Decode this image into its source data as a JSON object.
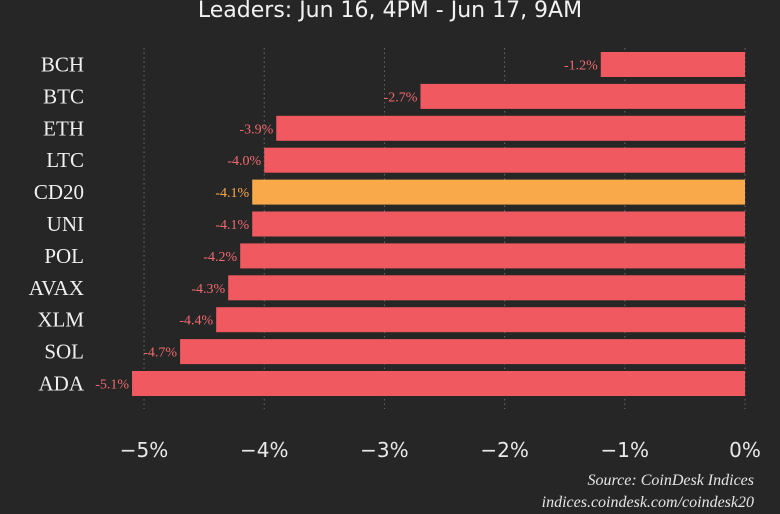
{
  "header": {
    "subtitle": "Leaders: Jun 16, 4PM - Jun 17, 9AM"
  },
  "chart_data": {
    "type": "bar",
    "orientation": "horizontal",
    "categories": [
      "BCH",
      "BTC",
      "ETH",
      "LTC",
      "CD20",
      "UNI",
      "POL",
      "AVAX",
      "XLM",
      "SOL",
      "ADA"
    ],
    "values": [
      -1.2,
      -2.7,
      -3.9,
      -4.0,
      -4.1,
      -4.1,
      -4.2,
      -4.3,
      -4.4,
      -4.7,
      -5.1
    ],
    "value_labels": [
      "-1.2%",
      "-2.7%",
      "-3.9%",
      "-4.0%",
      "-4.1%",
      "-4.1%",
      "-4.2%",
      "-4.3%",
      "-4.4%",
      "-4.7%",
      "-5.1%"
    ],
    "highlight": "CD20",
    "xlim": [
      -5.2,
      0
    ],
    "xticks": [
      -5,
      -4,
      -3,
      -2,
      -1,
      0
    ],
    "xtick_labels": [
      "−5%",
      "−4%",
      "−3%",
      "−2%",
      "−1%",
      "0%"
    ],
    "grid": "vertical, dotted",
    "colors": {
      "bar": "#f0595f",
      "highlight": "#f9a94a",
      "label": "#f26a6f",
      "highlight_label": "#f9a94a"
    }
  },
  "footer": {
    "source": "Source: CoinDesk Indices",
    "url": "indices.coindesk.com/coindesk20"
  }
}
